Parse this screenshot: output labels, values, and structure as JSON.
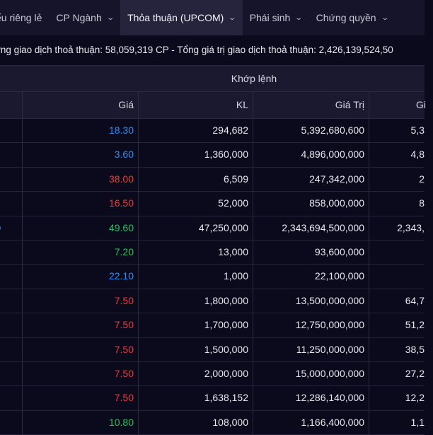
{
  "nav": {
    "items": [
      {
        "label": "ếu riêng lẻ",
        "has_chevron": false,
        "active": false
      },
      {
        "label": "CP Ngành",
        "has_chevron": true,
        "active": false
      },
      {
        "label": "Thỏa thuận (UPCOM)",
        "has_chevron": true,
        "active": true
      },
      {
        "label": "Phái sinh",
        "has_chevron": true,
        "active": false
      },
      {
        "label": "Chứng quyền",
        "has_chevron": true,
        "active": false
      }
    ]
  },
  "summary": {
    "text": "ợng giao dịch thoả thuận: 58,059,319 CP - Tổng giá trị giao dịch thoả thuận: 2,426,139,524,50"
  },
  "table": {
    "group_header": "Khớp lệnh",
    "columns": [
      "Giá",
      "KL",
      "Giá Trị",
      "Gi"
    ],
    "rows": [
      {
        "price": "18.30",
        "price_color": "#2f8ff0",
        "volume": "294,682",
        "value": "5,392,680,600",
        "partial": "5,3"
      },
      {
        "price": "3.60",
        "price_color": "#2f8ff0",
        "volume": "1,360,000",
        "value": "4,896,000,000",
        "partial": "4,8"
      },
      {
        "price": "38.00",
        "price_color": "#ef3b3b",
        "volume": "6,509",
        "value": "247,342,000",
        "partial": "2"
      },
      {
        "price": "16.50",
        "price_color": "#ef3b3b",
        "volume": "52,000",
        "value": "858,000,000",
        "partial": "8"
      },
      {
        "price": "49.60",
        "price_color": "#22c55e",
        "volume": "47,250,000",
        "value": "2,343,694,500,000",
        "partial": "2,343,",
        "marker": true
      },
      {
        "price": "7.20",
        "price_color": "#22c55e",
        "volume": "13,000",
        "value": "93,600,000",
        "partial": ""
      },
      {
        "price": "22.10",
        "price_color": "#2f8ff0",
        "volume": "1,000",
        "value": "22,100,000",
        "partial": ""
      },
      {
        "price": "7.50",
        "price_color": "#ef3b3b",
        "volume": "1,800,000",
        "value": "13,500,000,000",
        "partial": "64,7"
      },
      {
        "price": "7.50",
        "price_color": "#ef3b3b",
        "volume": "1,700,000",
        "value": "12,750,000,000",
        "partial": "51,2"
      },
      {
        "price": "7.50",
        "price_color": "#ef3b3b",
        "volume": "1,500,000",
        "value": "11,250,000,000",
        "partial": "38,5"
      },
      {
        "price": "7.50",
        "price_color": "#ef3b3b",
        "volume": "2,000,000",
        "value": "15,000,000,000",
        "partial": "27,2"
      },
      {
        "price": "7.50",
        "price_color": "#ef3b3b",
        "volume": "1,638,152",
        "value": "12,286,140,000",
        "partial": "12,2"
      },
      {
        "price": "10.80",
        "price_color": "#22c55e",
        "volume": "108,000",
        "value": "1,166,400,000",
        "partial": "1,1"
      }
    ]
  }
}
